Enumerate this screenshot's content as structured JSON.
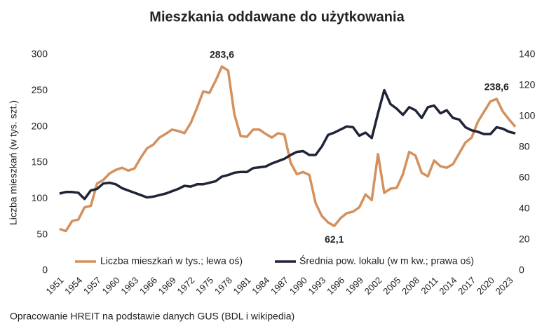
{
  "chart_data": {
    "type": "line",
    "title": "Mieszkania oddawane do użytkowania",
    "y_label": "Liczba mieszkań (w tys. szt.)",
    "source": "Opracowanie HREIT na podstawie danych GUS (BDL i wikipedia)",
    "categories": [
      "1951",
      null,
      null,
      "1954",
      null,
      null,
      "1957",
      null,
      null,
      "1960",
      null,
      null,
      "1963",
      null,
      null,
      "1966",
      null,
      null,
      "1969",
      null,
      null,
      "1972",
      null,
      null,
      "1975",
      null,
      null,
      "1978",
      null,
      null,
      "1981",
      null,
      null,
      "1984",
      null,
      null,
      "1987",
      null,
      null,
      "1990",
      null,
      null,
      "1993",
      null,
      null,
      "1996",
      null,
      null,
      "1999",
      null,
      null,
      "2002",
      null,
      null,
      "2005",
      null,
      null,
      "2008",
      null,
      null,
      "2011",
      null,
      null,
      "2014",
      null,
      null,
      "2017",
      null,
      null,
      "2020",
      null,
      null,
      "2023",
      null
    ],
    "series": [
      {
        "name": "Liczba mieszkań w tys.; lewa oś)",
        "color": "#d4915e",
        "values": [
          58,
          55,
          69,
          71,
          88,
          90,
          121,
          126,
          135,
          140,
          143,
          139,
          142,
          157,
          170,
          175,
          185,
          190,
          196,
          194,
          191,
          205,
          226,
          249,
          247,
          264,
          283.6,
          278,
          217,
          187,
          186,
          196,
          196,
          190,
          185,
          191,
          189,
          150,
          134,
          137,
          133,
          94,
          76,
          67,
          62.1,
          73,
          80,
          82,
          88,
          106,
          98,
          162,
          108,
          114,
          115,
          134,
          165,
          160,
          136,
          131,
          153,
          145,
          143,
          148,
          163,
          178,
          185,
          207,
          221,
          235,
          238.6,
          221,
          210,
          200
        ],
        "value_labels": [
          null,
          null,
          null,
          null,
          null,
          null,
          null,
          null,
          null,
          null,
          null,
          null,
          null,
          null,
          null,
          null,
          null,
          null,
          null,
          null,
          null,
          null,
          null,
          null,
          null,
          null,
          "283,6",
          null,
          null,
          null,
          null,
          null,
          null,
          null,
          null,
          null,
          null,
          null,
          null,
          null,
          null,
          null,
          null,
          null,
          "62,1",
          null,
          null,
          null,
          null,
          null,
          null,
          null,
          null,
          null,
          null,
          null,
          null,
          null,
          null,
          null,
          null,
          null,
          null,
          null,
          null,
          null,
          null,
          null,
          null,
          null,
          "238,6",
          null,
          null,
          null
        ]
      },
      {
        "name": "Średnia pow. lokalu (w m kw.; prawa oś)",
        "color": "#1f2438",
        "axis": "y2",
        "values": [
          50,
          51,
          51,
          50.5,
          46.5,
          52,
          53,
          56.5,
          57,
          56,
          53.5,
          52,
          50.5,
          49,
          47.5,
          48,
          49,
          50,
          51.5,
          53,
          55,
          54.5,
          56,
          56,
          57,
          58,
          61,
          62,
          63.5,
          64,
          64,
          66.5,
          67,
          67.5,
          69.5,
          71,
          72.5,
          75,
          77,
          77.5,
          75,
          75,
          80.5,
          88,
          89.5,
          91.5,
          93.5,
          93,
          87.5,
          89.5,
          86,
          102,
          117,
          108,
          105,
          101,
          106,
          104,
          99,
          106,
          107,
          102,
          104,
          99,
          98,
          93,
          91,
          90,
          88.5,
          88.5,
          93,
          92,
          90,
          89
        ]
      }
    ],
    "ylim": [
      0,
      300
    ],
    "yticks": [
      0,
      50,
      100,
      150,
      200,
      250,
      300
    ],
    "y2lim": [
      0,
      140
    ],
    "y2ticks": [
      0,
      20,
      40,
      60,
      80,
      100,
      120,
      140
    ],
    "legend": "bottom"
  }
}
